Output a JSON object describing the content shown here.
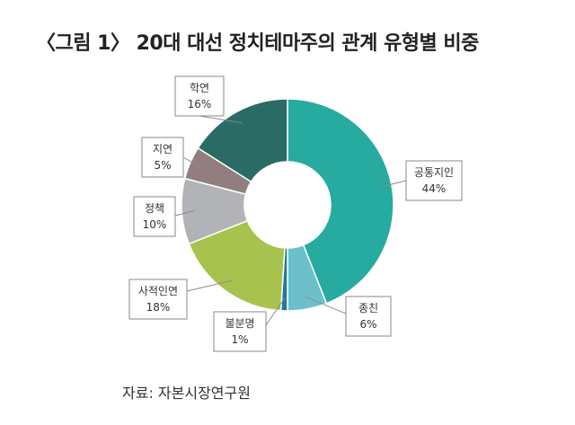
{
  "figure": {
    "title": "〈그림 1〉 20대 대선 정치테마주의 관계 유형별 비중",
    "source": "자료: 자본시장연구원"
  },
  "chart_data": {
    "type": "pie",
    "style": "donut",
    "unit": "%",
    "slices": [
      {
        "name": "공통지인",
        "value": 44,
        "label": "44%",
        "color": "#27aaa0"
      },
      {
        "name": "종친",
        "value": 6,
        "label": "6%",
        "color": "#6cc0cc"
      },
      {
        "name": "불분명",
        "value": 1,
        "label": "1%",
        "color": "#1f7b98"
      },
      {
        "name": "사적인연",
        "value": 18,
        "label": "18%",
        "color": "#a8c24e"
      },
      {
        "name": "정책",
        "value": 10,
        "label": "10%",
        "color": "#b2b3b6"
      },
      {
        "name": "지연",
        "value": 5,
        "label": "5%",
        "color": "#927e7e"
      },
      {
        "name": "학연",
        "value": 16,
        "label": "16%",
        "color": "#2b6b66"
      }
    ]
  }
}
